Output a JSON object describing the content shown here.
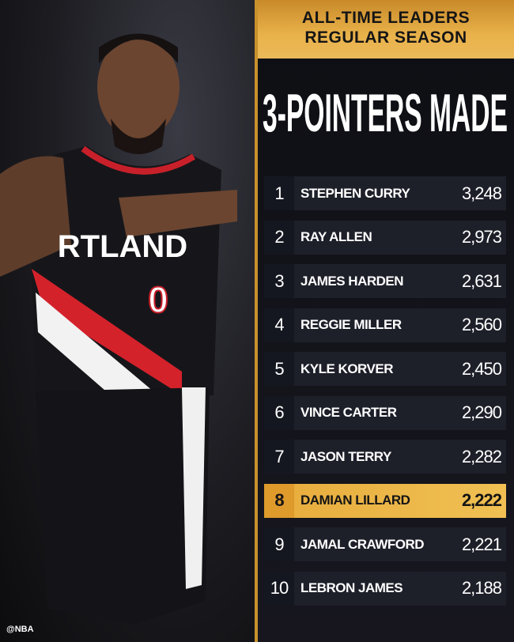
{
  "header": {
    "line1": "ALL-TIME LEADERS",
    "line2": "REGULAR SEASON"
  },
  "title": "3-POINTERS MADE",
  "photo": {
    "jersey_text": "RTLAND",
    "jersey_number": "0",
    "handle": "@NBA"
  },
  "highlight_color": "#e9b24a",
  "leaders": [
    {
      "rank": "1",
      "name": "STEPHEN CURRY",
      "value": "3,248"
    },
    {
      "rank": "2",
      "name": "RAY ALLEN",
      "value": "2,973"
    },
    {
      "rank": "3",
      "name": "JAMES HARDEN",
      "value": "2,631"
    },
    {
      "rank": "4",
      "name": "REGGIE MILLER",
      "value": "2,560"
    },
    {
      "rank": "5",
      "name": "KYLE KORVER",
      "value": "2,450"
    },
    {
      "rank": "6",
      "name": "VINCE CARTER",
      "value": "2,290"
    },
    {
      "rank": "7",
      "name": "JASON TERRY",
      "value": "2,282"
    },
    {
      "rank": "8",
      "name": "DAMIAN LILLARD",
      "value": "2,222",
      "highlighted": true
    },
    {
      "rank": "9",
      "name": "JAMAL CRAWFORD",
      "value": "2,221"
    },
    {
      "rank": "10",
      "name": "LEBRON JAMES",
      "value": "2,188"
    }
  ]
}
